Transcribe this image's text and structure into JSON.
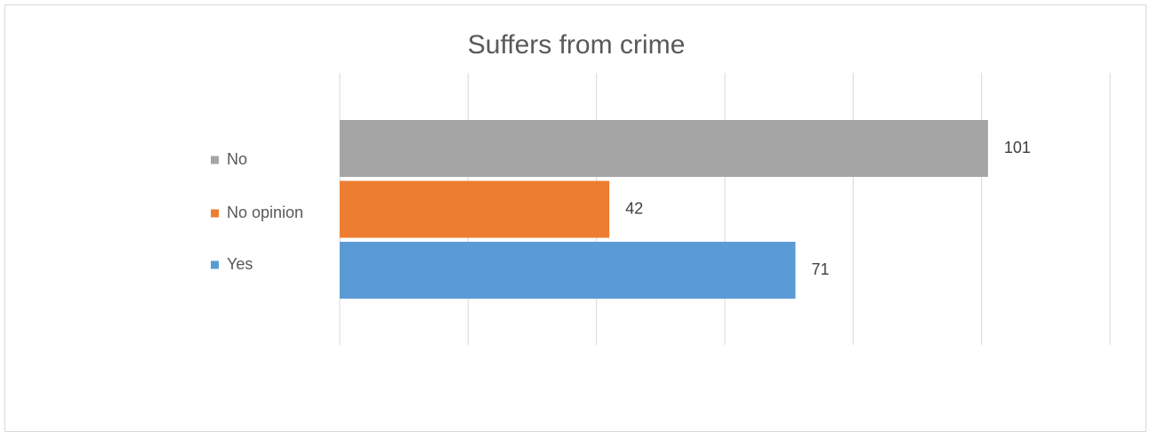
{
  "chart_data": {
    "type": "bar",
    "orientation": "horizontal",
    "title": "Suffers from crime",
    "series": [
      {
        "name": "No",
        "color": "#a5a5a5",
        "values": [
          101
        ]
      },
      {
        "name": "No opinion",
        "color": "#ed7d31",
        "values": [
          42
        ]
      },
      {
        "name": "Yes",
        "color": "#5b9bd5",
        "values": [
          71
        ]
      }
    ],
    "xlim": [
      0,
      120
    ],
    "xticks": [
      0,
      20,
      40,
      60,
      80,
      100,
      120
    ],
    "grid": true,
    "legend": "left"
  }
}
